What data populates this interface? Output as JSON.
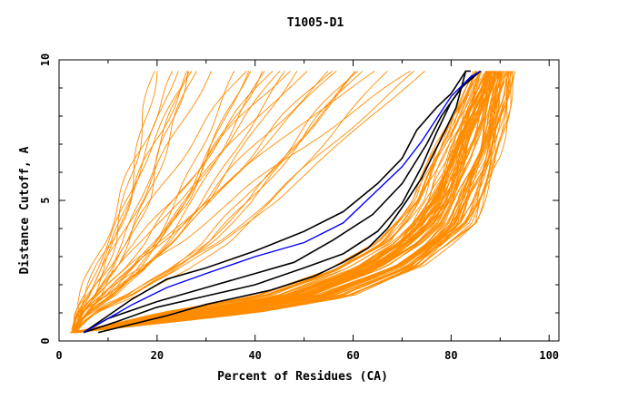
{
  "chart_data": {
    "type": "line",
    "title": "T1005-D1",
    "xlabel": "Percent of Residues (CA)",
    "ylabel": "Distance Cutoff, A",
    "xlim": [
      0,
      102
    ],
    "ylim": [
      0,
      10
    ],
    "xticks": [
      0,
      20,
      40,
      60,
      80,
      100
    ],
    "yticks": [
      0,
      5,
      10
    ],
    "xtick_labels": [
      "0",
      "20",
      "40",
      "60",
      "80",
      "100"
    ],
    "ytick_labels": [
      "0",
      "5",
      "10"
    ],
    "grid": false,
    "legend": "none",
    "colors": {
      "background_models": "#ff8c00",
      "highlight_models": "#000000",
      "best_model": "#0000ff"
    },
    "background_bundle": {
      "count": 120,
      "description_hidden": true,
      "envelope_low": [
        [
          3,
          0.3
        ],
        [
          20,
          1.0
        ],
        [
          40,
          1.6
        ],
        [
          55,
          2.5
        ],
        [
          65,
          3.5
        ],
        [
          72,
          5.0
        ],
        [
          76,
          6.5
        ],
        [
          80,
          8.0
        ],
        [
          85,
          9.6
        ]
      ],
      "envelope_high": [
        [
          3,
          0.3
        ],
        [
          40,
          1.0
        ],
        [
          60,
          1.6
        ],
        [
          75,
          2.7
        ],
        [
          85,
          4.2
        ],
        [
          90,
          6.5
        ],
        [
          93,
          9.6
        ]
      ]
    },
    "series": [
      {
        "color": "#000000",
        "x": [
          5,
          10,
          15,
          22,
          30,
          40,
          50,
          58,
          65,
          70,
          73,
          77,
          80,
          83,
          84
        ],
        "y": [
          0.3,
          0.9,
          1.5,
          2.2,
          2.6,
          3.2,
          3.9,
          4.6,
          5.6,
          6.5,
          7.5,
          8.3,
          8.8,
          9.6,
          9.6
        ]
      },
      {
        "color": "#000000",
        "x": [
          5,
          10,
          20,
          30,
          40,
          48,
          56,
          64,
          70,
          75,
          78,
          82,
          86
        ],
        "y": [
          0.3,
          0.8,
          1.4,
          1.9,
          2.4,
          2.8,
          3.6,
          4.5,
          5.6,
          7.0,
          8.0,
          9.0,
          9.6
        ]
      },
      {
        "color": "#000000",
        "x": [
          5,
          12,
          20,
          30,
          40,
          50,
          58,
          65,
          70,
          74,
          77,
          80,
          83,
          86
        ],
        "y": [
          0.3,
          0.7,
          1.2,
          1.6,
          2.0,
          2.6,
          3.1,
          3.9,
          4.9,
          6.2,
          7.4,
          8.5,
          9.2,
          9.6
        ]
      },
      {
        "color": "#000000",
        "x": [
          8,
          15,
          22,
          30,
          43,
          52,
          58,
          63,
          67,
          71,
          74,
          76,
          78,
          81,
          83
        ],
        "y": [
          0.3,
          0.6,
          0.9,
          1.3,
          1.8,
          2.3,
          2.8,
          3.3,
          4.0,
          5.0,
          5.8,
          6.5,
          7.2,
          8.3,
          9.6
        ]
      },
      {
        "color": "#0000ff",
        "x": [
          5,
          10,
          15,
          22,
          30,
          40,
          50,
          58,
          64,
          70,
          74,
          77,
          80,
          84,
          86
        ],
        "y": [
          0.3,
          0.8,
          1.3,
          1.9,
          2.4,
          3.0,
          3.5,
          4.2,
          5.2,
          6.2,
          7.1,
          7.9,
          8.7,
          9.4,
          9.6
        ]
      }
    ]
  }
}
